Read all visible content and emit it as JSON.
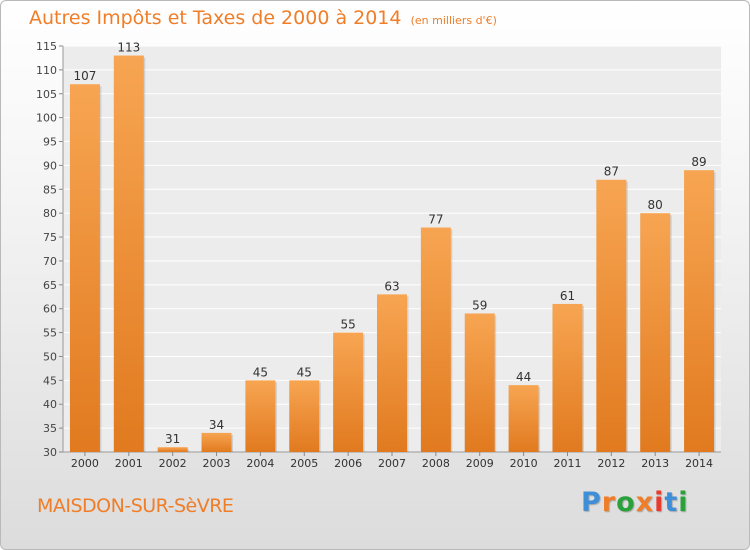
{
  "header": {
    "title": "Autres Impôts et Taxes de 2000 à 2014",
    "unit": "(en milliers d'€)"
  },
  "footer": {
    "commune": "MAISDON-SUR-SèVRE",
    "logo_text": "Proxiti"
  },
  "colors": {
    "accent": "#f07d28",
    "bar_light": "#f7a552",
    "bar_dark": "#e17a1f",
    "logo": [
      "#3f8fd8",
      "#f07d28",
      "#2aa13a",
      "#f07d28",
      "#e63b2e",
      "#3f8fd8",
      "#2aa13a"
    ]
  },
  "chart_data": {
    "type": "bar",
    "categories": [
      "2000",
      "2001",
      "2002",
      "2003",
      "2004",
      "2005",
      "2006",
      "2007",
      "2008",
      "2009",
      "2010",
      "2011",
      "2012",
      "2013",
      "2014"
    ],
    "values": [
      107,
      113,
      31,
      34,
      45,
      45,
      55,
      63,
      77,
      59,
      44,
      61,
      87,
      80,
      89
    ],
    "data_labels": [
      "107",
      "113",
      "31",
      "34",
      "45",
      "45",
      "55",
      "63",
      "77",
      "59",
      "44",
      "61",
      "87",
      "80",
      "89"
    ],
    "ylim": [
      30,
      115
    ],
    "yticks": [
      30,
      35,
      40,
      45,
      50,
      55,
      60,
      65,
      70,
      75,
      80,
      85,
      90,
      95,
      100,
      105,
      110,
      115
    ],
    "xlabel": "",
    "ylabel": "",
    "grid": "horizontal"
  }
}
